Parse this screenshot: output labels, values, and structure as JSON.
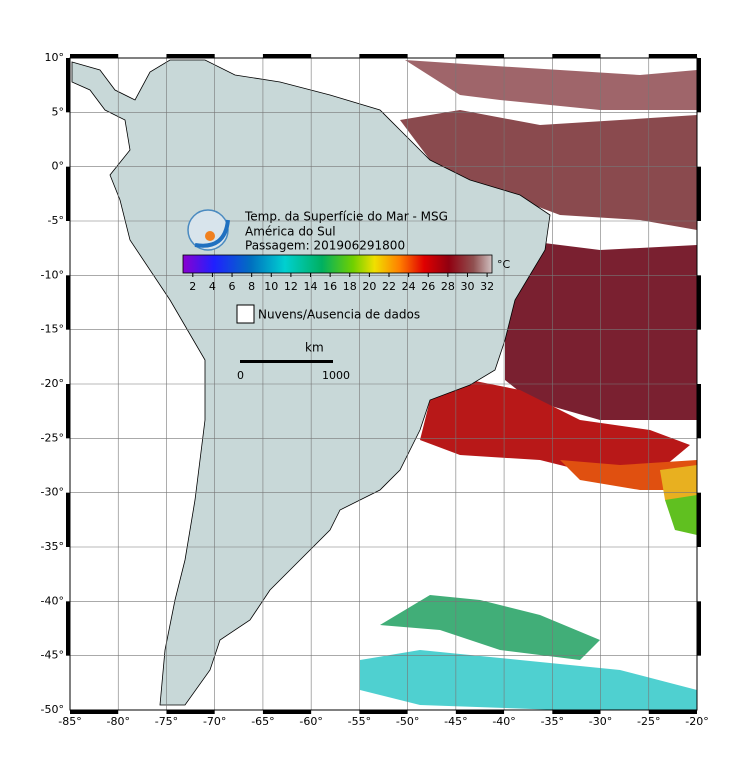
{
  "map": {
    "title_lines": [
      "Temp. da Superfície do Mar - MSG",
      "América do Sul",
      "Passagem: 201906291800"
    ],
    "colorbar": {
      "unit": "°C",
      "range": [
        1,
        32.5
      ],
      "ticks": [
        2,
        4,
        6,
        8,
        10,
        12,
        14,
        16,
        18,
        20,
        22,
        24,
        26,
        28,
        30,
        32
      ]
    },
    "no_data_label": "Nuvens/Ausencia de dados",
    "scale": {
      "unit": "km",
      "labels": [
        "0",
        "1000"
      ]
    },
    "lonlim": [
      -85,
      -20
    ],
    "latlim": [
      -50,
      10
    ],
    "lon_ticks": [
      {
        "value": -85,
        "label": "-85°"
      },
      {
        "value": -80,
        "label": "-80°"
      },
      {
        "value": -75,
        "label": "-75°"
      },
      {
        "value": -70,
        "label": "-70°"
      },
      {
        "value": -65,
        "label": "-65°"
      },
      {
        "value": -60,
        "label": "-60°"
      },
      {
        "value": -55,
        "label": "-55°"
      },
      {
        "value": -50,
        "label": "-50°"
      },
      {
        "value": -45,
        "label": "-45°"
      },
      {
        "value": -40,
        "label": "-40°"
      },
      {
        "value": -35,
        "label": "-35°"
      },
      {
        "value": -30,
        "label": "-30°"
      },
      {
        "value": -25,
        "label": "-25°"
      },
      {
        "value": -20,
        "label": "-20°"
      }
    ],
    "lat_ticks": [
      {
        "value": 10,
        "label": "10°"
      },
      {
        "value": 5,
        "label": "5°"
      },
      {
        "value": 0,
        "label": "0°"
      },
      {
        "value": -5,
        "label": "-5°"
      },
      {
        "value": -10,
        "label": "-10°"
      },
      {
        "value": -15,
        "label": "-15°"
      },
      {
        "value": -20,
        "label": "-20°"
      },
      {
        "value": -25,
        "label": "-25°"
      },
      {
        "value": -30,
        "label": "-30°"
      },
      {
        "value": -35,
        "label": "-35°"
      },
      {
        "value": -40,
        "label": "-40°"
      },
      {
        "value": -45,
        "label": "-45°"
      },
      {
        "value": -50,
        "label": "-50°"
      }
    ]
  }
}
